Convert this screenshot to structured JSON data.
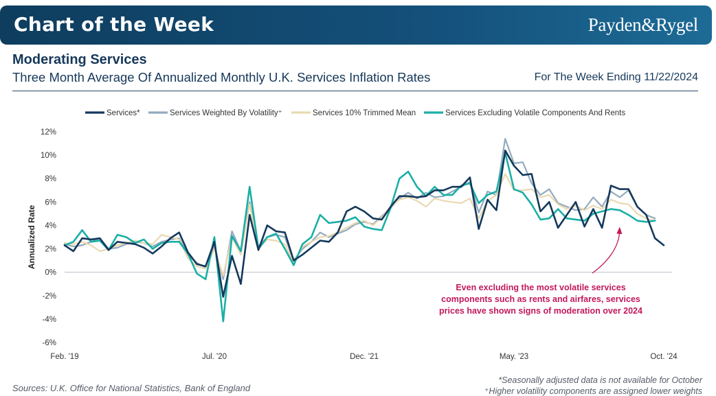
{
  "header": {
    "banner_title": "Chart of the Week",
    "brand": "Payden&Rygel",
    "title": "Moderating Services",
    "subtitle": "Three Month Average Of Annualized Monthly U.K. Services Inflation Rates",
    "week": "For The Week Ending 11/22/2024"
  },
  "footer": {
    "source": "Sources: U.K. Office for National Statistics, Bank of England",
    "note1": "*Seasonally adjusted data is not available for October",
    "note2": "⁺Higher volatility components are assigned lower weights"
  },
  "chart_data": {
    "type": "line",
    "ylabel": "Annualized Rate",
    "ylim": [
      -6,
      12
    ],
    "yticks": [
      -6,
      -4,
      -2,
      0,
      2,
      4,
      6,
      8,
      10,
      12
    ],
    "ytick_labels": [
      "-6%",
      "-4%",
      "-2%",
      "0%",
      "2%",
      "4%",
      "6%",
      "8%",
      "10%",
      "12%"
    ],
    "x_ticks": [
      {
        "index": 0,
        "label": "Feb. '19"
      },
      {
        "index": 17,
        "label": "Jul. '20"
      },
      {
        "index": 34,
        "label": "Dec. '21"
      },
      {
        "index": 51,
        "label": "May. '23"
      },
      {
        "index": 68,
        "label": "Oct. '24"
      }
    ],
    "x_count": 69,
    "annotation": {
      "lines": [
        "Even excluding the most volatile services",
        "components such as rents and airfares, services",
        "prices have shown signs of moderation over 2024"
      ],
      "color": "#c2185b",
      "target_index": 63,
      "target_value": 4.0
    },
    "series": [
      {
        "name": "Services*",
        "color": "#14385c",
        "width": 2.6,
        "values": [
          2.3,
          1.8,
          2.9,
          2.8,
          2.9,
          1.9,
          2.6,
          2.5,
          2.4,
          2.1,
          1.6,
          2.2,
          2.9,
          3.4,
          1.7,
          0.7,
          0.5,
          2.6,
          -2.1,
          1.4,
          -1.0,
          4.9,
          1.9,
          4.0,
          3.5,
          3.4,
          1.0,
          1.5,
          2.1,
          2.7,
          2.6,
          3.4,
          5.2,
          5.6,
          5.2,
          4.6,
          4.5,
          5.6,
          6.5,
          6.5,
          6.4,
          6.5,
          7.0,
          7.0,
          7.3,
          7.3,
          8.1,
          3.7,
          6.2,
          5.3,
          10.4,
          9.1,
          8.3,
          8.4,
          5.2,
          6.0,
          3.8,
          4.9,
          6.0,
          3.9,
          5.4,
          3.8,
          7.4,
          7.1,
          7.1,
          5.6,
          4.9,
          2.9,
          2.3
        ]
      },
      {
        "name": "Services Weighted By Volatility⁺",
        "color": "#93aabd",
        "width": 2.2,
        "values": [
          2.4,
          2.2,
          2.3,
          2.6,
          2.9,
          2.0,
          2.1,
          2.4,
          2.6,
          2.5,
          2.2,
          2.6,
          2.8,
          2.9,
          1.5,
          0.8,
          0.4,
          2.2,
          -0.6,
          3.5,
          1.8,
          6.0,
          2.2,
          3.0,
          3.2,
          3.0,
          1.0,
          2.0,
          2.6,
          3.4,
          3.0,
          3.3,
          3.6,
          4.1,
          4.3,
          4.1,
          4.8,
          5.5,
          6.3,
          6.8,
          6.3,
          6.8,
          6.4,
          6.5,
          6.9,
          7.3,
          7.7,
          5.1,
          6.9,
          6.6,
          11.4,
          9.3,
          9.4,
          7.6,
          6.6,
          7.1,
          5.9,
          5.6,
          5.3,
          5.4,
          6.4,
          5.6,
          6.9,
          6.4,
          7.0,
          5.6,
          4.9,
          4.6,
          null
        ]
      },
      {
        "name": "Services 10% Trimmed Mean",
        "color": "#ead9b1",
        "width": 2.2,
        "values": [
          2.5,
          2.4,
          2.6,
          2.3,
          1.8,
          2.0,
          2.3,
          2.5,
          2.7,
          2.5,
          2.4,
          3.2,
          3.0,
          2.8,
          1.2,
          0.5,
          0.3,
          2.0,
          -0.3,
          3.0,
          1.5,
          5.8,
          2.0,
          2.8,
          2.7,
          2.4,
          0.8,
          2.2,
          2.6,
          3.0,
          3.1,
          3.4,
          3.8,
          4.2,
          4.4,
          4.0,
          4.7,
          5.6,
          6.2,
          6.4,
          6.1,
          5.6,
          6.3,
          6.1,
          6.0,
          5.9,
          6.3,
          4.6,
          6.1,
          6.6,
          8.4,
          7.0,
          7.0,
          7.1,
          6.4,
          6.6,
          5.8,
          5.4,
          5.7,
          5.3,
          5.7,
          5.4,
          6.2,
          5.9,
          5.8,
          5.0,
          4.6,
          4.4,
          null
        ]
      },
      {
        "name": "Services Excluding Volatile Components And Rents",
        "color": "#1aafa6",
        "width": 2.6,
        "values": [
          2.3,
          2.6,
          3.6,
          2.6,
          2.7,
          1.9,
          3.2,
          3.0,
          2.5,
          2.8,
          2.0,
          2.5,
          2.6,
          2.6,
          1.6,
          -0.1,
          -0.6,
          3.0,
          -4.2,
          3.1,
          1.8,
          7.3,
          2.0,
          3.0,
          3.3,
          2.0,
          0.6,
          2.4,
          3.0,
          4.9,
          4.2,
          4.3,
          4.4,
          4.7,
          3.9,
          3.7,
          3.6,
          5.5,
          8.0,
          8.6,
          7.3,
          6.5,
          7.3,
          6.6,
          6.6,
          7.4,
          7.6,
          5.9,
          6.6,
          6.9,
          10.2,
          7.1,
          6.8,
          5.8,
          4.5,
          4.6,
          5.4,
          4.6,
          4.5,
          4.4,
          5.0,
          5.2,
          5.4,
          5.3,
          4.9,
          4.4,
          4.3,
          4.4,
          null
        ]
      }
    ]
  }
}
